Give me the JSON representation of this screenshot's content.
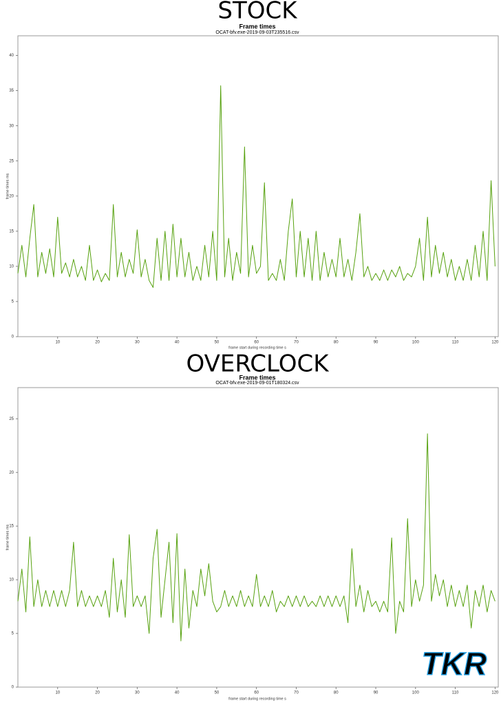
{
  "chart_data": [
    {
      "type": "line",
      "heading": "STOCK",
      "title": "Frame times",
      "subtitle": "OCAT-bfv.exe-2019-09-03T235516.csv",
      "x_label": "frame start during recording time s",
      "y_label": "frame times ms",
      "xlim": [
        0,
        120.8
      ],
      "ylim": [
        0,
        42.8
      ],
      "xticks": [
        10,
        20,
        30,
        40,
        50,
        60,
        70,
        80,
        90,
        100,
        110,
        120
      ],
      "yticks": [
        0,
        5,
        10,
        15,
        20,
        25,
        30,
        35,
        40
      ],
      "x": [
        0,
        1,
        2,
        3,
        4,
        5,
        6,
        7,
        8,
        9,
        10,
        11,
        12,
        13,
        14,
        15,
        16,
        17,
        18,
        19,
        20,
        21,
        22,
        23,
        24,
        25,
        26,
        27,
        28,
        29,
        30,
        31,
        32,
        33,
        34,
        35,
        36,
        37,
        38,
        39,
        40,
        41,
        42,
        43,
        44,
        45,
        46,
        47,
        48,
        49,
        50,
        51,
        52,
        53,
        54,
        55,
        56,
        57,
        58,
        59,
        60,
        61,
        62,
        63,
        64,
        65,
        66,
        67,
        68,
        69,
        70,
        71,
        72,
        73,
        74,
        75,
        76,
        77,
        78,
        79,
        80,
        81,
        82,
        83,
        84,
        85,
        86,
        87,
        88,
        89,
        90,
        91,
        92,
        93,
        94,
        95,
        96,
        97,
        98,
        99,
        100,
        101,
        102,
        103,
        104,
        105,
        106,
        107,
        108,
        109,
        110,
        111,
        112,
        113,
        114,
        115,
        116,
        117,
        118,
        119,
        120
      ],
      "series": [
        {
          "name": "frame times",
          "color": "#56a10e",
          "values": [
            9,
            13,
            8.5,
            14,
            18.8,
            8.5,
            12,
            9,
            12.5,
            8.5,
            17,
            9,
            10.5,
            8.5,
            11,
            8.5,
            10,
            8,
            13,
            8,
            9.5,
            7.8,
            9,
            8,
            18.8,
            8.5,
            12,
            8.5,
            11,
            9,
            15.2,
            8.5,
            11,
            8,
            7,
            14,
            8,
            15,
            8,
            16,
            8.5,
            14,
            8.5,
            12,
            8,
            10,
            8,
            13,
            8.5,
            15,
            8,
            35.7,
            8.5,
            14,
            8,
            12,
            9,
            27,
            8.5,
            13,
            9,
            10,
            21.9,
            8,
            9,
            8,
            11,
            8,
            15,
            19.6,
            8.5,
            15,
            8.5,
            14,
            8,
            15,
            8,
            12,
            8.5,
            11,
            8.5,
            14,
            8.5,
            11,
            8,
            12,
            17.5,
            8.5,
            10,
            8,
            9,
            8,
            9.5,
            8,
            9.5,
            8.5,
            10,
            8,
            9,
            8.5,
            10,
            14,
            8,
            17,
            8.5,
            13,
            9,
            12,
            8.5,
            11,
            8,
            10,
            8,
            11,
            8,
            13,
            8.5,
            15,
            8,
            22.2,
            10
          ]
        }
      ],
      "watermark": null
    },
    {
      "type": "line",
      "heading": "OVERCLOCK",
      "title": "Frame times",
      "subtitle": "OCAT-bfv.exe-2019-09-01T180324.csv",
      "x_label": "frame start during recording time s",
      "y_label": "frame times ms",
      "xlim": [
        0,
        120.8
      ],
      "ylim": [
        0,
        27.9
      ],
      "xticks": [
        10,
        20,
        30,
        40,
        50,
        60,
        70,
        80,
        90,
        100,
        110,
        120
      ],
      "yticks": [
        0,
        5,
        10,
        15,
        20,
        25
      ],
      "x": [
        0,
        1,
        2,
        3,
        4,
        5,
        6,
        7,
        8,
        9,
        10,
        11,
        12,
        13,
        14,
        15,
        16,
        17,
        18,
        19,
        20,
        21,
        22,
        23,
        24,
        25,
        26,
        27,
        28,
        29,
        30,
        31,
        32,
        33,
        34,
        35,
        36,
        37,
        38,
        39,
        40,
        41,
        42,
        43,
        44,
        45,
        46,
        47,
        48,
        49,
        50,
        51,
        52,
        53,
        54,
        55,
        56,
        57,
        58,
        59,
        60,
        61,
        62,
        63,
        64,
        65,
        66,
        67,
        68,
        69,
        70,
        71,
        72,
        73,
        74,
        75,
        76,
        77,
        78,
        79,
        80,
        81,
        82,
        83,
        84,
        85,
        86,
        87,
        88,
        89,
        90,
        91,
        92,
        93,
        94,
        95,
        96,
        97,
        98,
        99,
        100,
        101,
        102,
        103,
        104,
        105,
        106,
        107,
        108,
        109,
        110,
        111,
        112,
        113,
        114,
        115,
        116,
        117,
        118,
        119,
        120
      ],
      "series": [
        {
          "name": "frame times",
          "color": "#56a10e",
          "values": [
            8,
            11,
            7,
            14,
            7.5,
            10,
            7.5,
            9,
            7.5,
            9,
            7.5,
            9,
            7.5,
            9,
            13.5,
            7.5,
            9,
            7.5,
            8.5,
            7.5,
            8.5,
            7.5,
            9,
            6.5,
            12,
            7,
            10,
            6.5,
            14.2,
            7.5,
            8.5,
            7.5,
            8.5,
            5,
            12,
            14.7,
            6.5,
            10,
            13.5,
            6,
            14.3,
            4.3,
            11,
            5.5,
            9,
            7.5,
            11,
            8.5,
            11.5,
            8,
            7,
            7.5,
            9,
            7.5,
            8.5,
            7.5,
            9,
            7.5,
            8.5,
            7.5,
            10.5,
            7.5,
            8.5,
            7.5,
            9,
            7,
            8,
            7.5,
            8.5,
            7.5,
            8.5,
            7.5,
            8.5,
            7.5,
            8,
            7.5,
            8.5,
            7.5,
            8.5,
            7.5,
            8.5,
            7.5,
            8.5,
            6,
            12.9,
            7.5,
            9.5,
            7,
            9,
            7.5,
            8,
            7,
            8,
            7,
            13.9,
            5,
            8,
            7,
            15.7,
            7.5,
            10,
            8,
            9.5,
            23.6,
            8,
            10.5,
            8.5,
            10,
            7.5,
            9.5,
            7.5,
            9,
            7.5,
            9.5,
            5.5,
            9,
            7.5,
            9.5,
            7,
            9,
            8
          ]
        }
      ],
      "watermark": "TKR"
    }
  ]
}
